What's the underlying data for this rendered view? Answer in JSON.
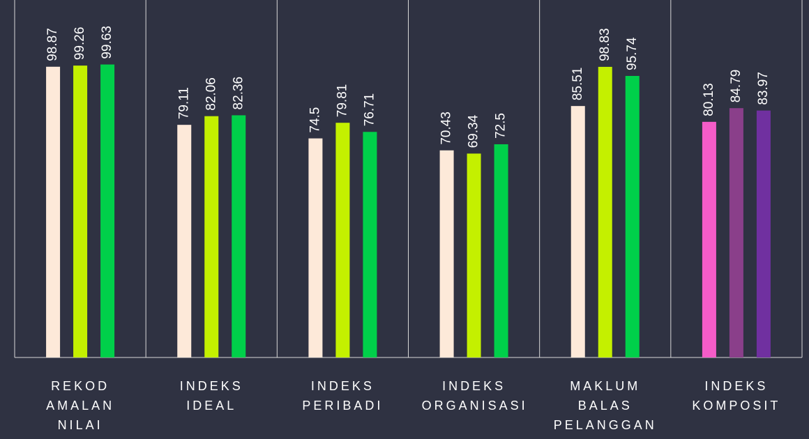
{
  "chart_data": {
    "type": "bar",
    "categories": [
      "REKOD AMALAN NILAI",
      "INDEKS IDEAL",
      "INDEKS PERIBADI",
      "INDEKS ORGANISASI",
      "MAKLUM BALAS PELANGGAN",
      "INDEKS KOMPOSIT"
    ],
    "series": [
      {
        "colors": [
          "#fde9d9",
          "#fde9d9",
          "#fde9d9",
          "#fde9d9",
          "#fde9d9",
          "#f55cc8"
        ],
        "values": [
          98.87,
          79.11,
          74.5,
          70.43,
          85.51,
          80.13
        ]
      },
      {
        "colors": [
          "#c4f000",
          "#c4f000",
          "#c4f000",
          "#c4f000",
          "#c4f000",
          "#8a3f8a"
        ],
        "values": [
          99.26,
          82.06,
          79.81,
          69.34,
          98.83,
          84.79
        ]
      },
      {
        "colors": [
          "#00d04a",
          "#00d04a",
          "#00d04a",
          "#00d04a",
          "#00d04a",
          "#7030a0"
        ],
        "values": [
          99.63,
          82.36,
          76.71,
          72.5,
          95.74,
          83.97
        ]
      }
    ],
    "ylim": [
      0,
      100
    ],
    "background": "#2f3242"
  }
}
